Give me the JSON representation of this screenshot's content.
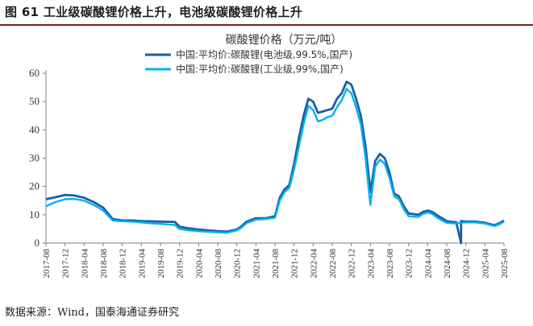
{
  "figure": {
    "title": "图 61  工业级碳酸锂价格上升，电池级碳酸锂价格上升",
    "source": "数据来源：Wind，国泰海通证券研究"
  },
  "chart_data": {
    "type": "line",
    "title": "碳酸锂价格（万元/吨）",
    "xlabel": "",
    "ylabel": "",
    "ylim": [
      0,
      60
    ],
    "yticks": [
      "0",
      "10",
      "20",
      "30",
      "40",
      "50",
      "60"
    ],
    "xlim": [
      "2017-08",
      "2025-08"
    ],
    "xticks": [
      "2017-08",
      "2017-12",
      "2018-04",
      "2018-08",
      "2018-12",
      "2019-04",
      "2019-08",
      "2019-12",
      "2020-04",
      "2020-08",
      "2020-12",
      "2021-04",
      "2021-08",
      "2021-12",
      "2022-04",
      "2022-08",
      "2022-12",
      "2023-04",
      "2023-08",
      "2023-12",
      "2024-04",
      "2024-08",
      "2024-12",
      "2025-04",
      "2025-08"
    ],
    "grid": false,
    "legend_position": "top-center",
    "series": [
      {
        "name": "中国:平均价:碳酸锂(电池级,99.5%,国产)",
        "color": "#1a5ea8",
        "points": [
          [
            "2017-08",
            15.5
          ],
          [
            "2017-10",
            16.2
          ],
          [
            "2017-12",
            17.0
          ],
          [
            "2018-02",
            16.8
          ],
          [
            "2018-04",
            16.0
          ],
          [
            "2018-06",
            14.5
          ],
          [
            "2018-08",
            12.5
          ],
          [
            "2018-10",
            8.5
          ],
          [
            "2018-12",
            8.0
          ],
          [
            "2019-02",
            8.0
          ],
          [
            "2019-04",
            7.8
          ],
          [
            "2019-06",
            7.7
          ],
          [
            "2019-08",
            7.6
          ],
          [
            "2019-10",
            7.5
          ],
          [
            "2019-11",
            7.5
          ],
          [
            "2019-12",
            5.8
          ],
          [
            "2020-02",
            5.2
          ],
          [
            "2020-04",
            4.8
          ],
          [
            "2020-06",
            4.5
          ],
          [
            "2020-08",
            4.2
          ],
          [
            "2020-10",
            4.1
          ],
          [
            "2020-12",
            4.8
          ],
          [
            "2021-01",
            6.0
          ],
          [
            "2021-02",
            7.5
          ],
          [
            "2021-04",
            8.8
          ],
          [
            "2021-06",
            8.8
          ],
          [
            "2021-08",
            9.5
          ],
          [
            "2021-09",
            16.0
          ],
          [
            "2021-10",
            19.0
          ],
          [
            "2021-11",
            20.5
          ],
          [
            "2021-12",
            28.0
          ],
          [
            "2022-01",
            37.0
          ],
          [
            "2022-02",
            45.0
          ],
          [
            "2022-03",
            51.0
          ],
          [
            "2022-04",
            50.0
          ],
          [
            "2022-05",
            46.0
          ],
          [
            "2022-06",
            46.5
          ],
          [
            "2022-07",
            47.0
          ],
          [
            "2022-08",
            47.5
          ],
          [
            "2022-09",
            51.0
          ],
          [
            "2022-10",
            53.0
          ],
          [
            "2022-11",
            57.0
          ],
          [
            "2022-12",
            56.0
          ],
          [
            "2023-01",
            51.0
          ],
          [
            "2023-02",
            45.0
          ],
          [
            "2023-03",
            34.0
          ],
          [
            "2023-04",
            18.0
          ],
          [
            "2023-05",
            29.0
          ],
          [
            "2023-06",
            31.5
          ],
          [
            "2023-07",
            30.0
          ],
          [
            "2023-08",
            25.0
          ],
          [
            "2023-09",
            17.5
          ],
          [
            "2023-10",
            16.5
          ],
          [
            "2023-11",
            13.0
          ],
          [
            "2023-12",
            10.5
          ],
          [
            "2024-02",
            10.0
          ],
          [
            "2024-03",
            11.0
          ],
          [
            "2024-04",
            11.5
          ],
          [
            "2024-05",
            11.0
          ],
          [
            "2024-06",
            9.8
          ],
          [
            "2024-07",
            8.8
          ],
          [
            "2024-08",
            7.8
          ],
          [
            "2024-09",
            7.5
          ],
          [
            "2024-10",
            7.4
          ],
          [
            "2024-11",
            0.0
          ],
          [
            "2024-11",
            7.8
          ],
          [
            "2024-12",
            7.6
          ],
          [
            "2025-02",
            7.6
          ],
          [
            "2025-04",
            7.2
          ],
          [
            "2025-06",
            6.3
          ],
          [
            "2025-07",
            7.0
          ],
          [
            "2025-08",
            8.0
          ]
        ]
      },
      {
        "name": "中国:平均价:碳酸锂(工业级,99%,国产)",
        "color": "#00b0f0",
        "points": [
          [
            "2017-08",
            13.0
          ],
          [
            "2017-10",
            14.5
          ],
          [
            "2017-12",
            15.5
          ],
          [
            "2018-02",
            15.6
          ],
          [
            "2018-04",
            15.0
          ],
          [
            "2018-06",
            13.5
          ],
          [
            "2018-08",
            11.5
          ],
          [
            "2018-10",
            8.0
          ],
          [
            "2018-12",
            7.7
          ],
          [
            "2019-02",
            7.6
          ],
          [
            "2019-04",
            7.3
          ],
          [
            "2019-06",
            7.0
          ],
          [
            "2019-08",
            6.8
          ],
          [
            "2019-10",
            6.5
          ],
          [
            "2019-11",
            6.4
          ],
          [
            "2019-12",
            5.0
          ],
          [
            "2020-02",
            4.5
          ],
          [
            "2020-04",
            4.2
          ],
          [
            "2020-06",
            4.0
          ],
          [
            "2020-08",
            3.8
          ],
          [
            "2020-10",
            3.7
          ],
          [
            "2020-12",
            4.5
          ],
          [
            "2021-01",
            5.5
          ],
          [
            "2021-02",
            7.0
          ],
          [
            "2021-04",
            8.3
          ],
          [
            "2021-06",
            8.5
          ],
          [
            "2021-08",
            9.0
          ],
          [
            "2021-09",
            15.0
          ],
          [
            "2021-10",
            18.0
          ],
          [
            "2021-11",
            19.5
          ],
          [
            "2021-12",
            26.0
          ],
          [
            "2022-01",
            34.0
          ],
          [
            "2022-02",
            42.0
          ],
          [
            "2022-03",
            48.5
          ],
          [
            "2022-04",
            47.0
          ],
          [
            "2022-05",
            43.0
          ],
          [
            "2022-06",
            43.5
          ],
          [
            "2022-07",
            44.5
          ],
          [
            "2022-08",
            45.0
          ],
          [
            "2022-09",
            48.0
          ],
          [
            "2022-10",
            50.5
          ],
          [
            "2022-11",
            54.5
          ],
          [
            "2022-12",
            53.0
          ],
          [
            "2023-01",
            48.0
          ],
          [
            "2023-02",
            42.0
          ],
          [
            "2023-03",
            30.0
          ],
          [
            "2023-04",
            13.5
          ],
          [
            "2023-05",
            27.0
          ],
          [
            "2023-06",
            29.5
          ],
          [
            "2023-07",
            28.0
          ],
          [
            "2023-08",
            23.0
          ],
          [
            "2023-09",
            16.5
          ],
          [
            "2023-10",
            15.5
          ],
          [
            "2023-11",
            12.0
          ],
          [
            "2023-12",
            9.5
          ],
          [
            "2024-02",
            9.2
          ],
          [
            "2024-03",
            10.3
          ],
          [
            "2024-04",
            10.8
          ],
          [
            "2024-05",
            10.3
          ],
          [
            "2024-06",
            9.0
          ],
          [
            "2024-07",
            8.0
          ],
          [
            "2024-08",
            7.2
          ],
          [
            "2024-09",
            7.0
          ],
          [
            "2024-10",
            7.0
          ],
          [
            "2024-11",
            7.2
          ],
          [
            "2024-12",
            7.3
          ],
          [
            "2025-02",
            7.3
          ],
          [
            "2025-04",
            6.9
          ],
          [
            "2025-06",
            6.0
          ],
          [
            "2025-07",
            6.6
          ],
          [
            "2025-08",
            7.6
          ]
        ]
      }
    ]
  }
}
